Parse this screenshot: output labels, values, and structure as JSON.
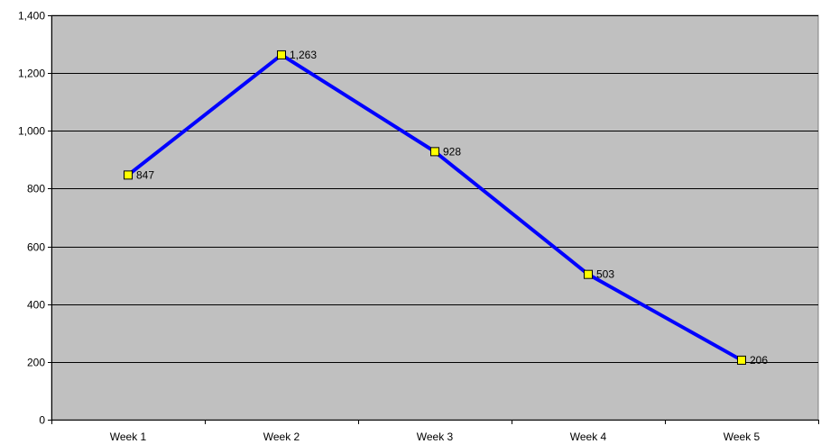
{
  "chart_data": {
    "type": "line",
    "categories": [
      "Week 1",
      "Week 2",
      "Week 3",
      "Week 4",
      "Week 5"
    ],
    "series": [
      {
        "values": [
          847,
          1263,
          928,
          503,
          206
        ],
        "data_labels": [
          "847",
          "1,263",
          "928",
          "503",
          "206"
        ]
      }
    ],
    "title": "",
    "xlabel": "",
    "ylabel": "",
    "ylim": [
      0,
      1400
    ],
    "y_ticks": [
      0,
      200,
      400,
      600,
      800,
      1000,
      1200,
      1400
    ],
    "y_tick_labels": [
      "0",
      "200",
      "400",
      "600",
      "800",
      "1,000",
      "1,200",
      "1,400"
    ],
    "grid": "horizontal",
    "legend": "none",
    "colors": {
      "plot_background": "#c0c0c0",
      "gridline": "#000000",
      "line": "#0000ff",
      "marker_fill": "#ffff00",
      "marker_stroke": "#000000"
    }
  }
}
